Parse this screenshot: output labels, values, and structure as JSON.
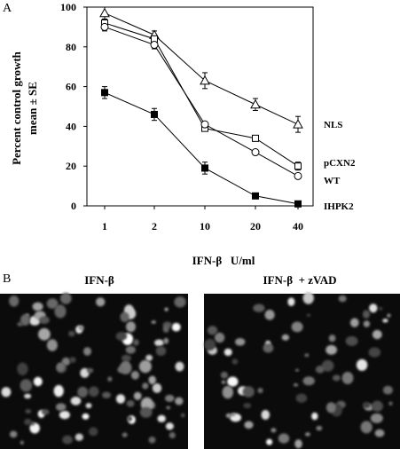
{
  "panels": {
    "a_letter": "A",
    "b_letter": "B"
  },
  "chart_data": {
    "type": "line",
    "categories": [
      "1",
      "2",
      "10",
      "20",
      "40"
    ],
    "xlabel": "IFN-β   U/ml",
    "ylabel": [
      "Percent control growth",
      "mean ± SE"
    ],
    "ylim": [
      0,
      100
    ],
    "yticks": [
      0,
      20,
      40,
      60,
      80,
      100
    ],
    "grid": false,
    "legend": "labels at line ends",
    "series": [
      {
        "name": "NLS",
        "marker": "triangle-open",
        "values": [
          97,
          86,
          63,
          51,
          41
        ],
        "errors": [
          3,
          2,
          4,
          3,
          4
        ]
      },
      {
        "name": "pCXN2",
        "marker": "square-open",
        "values": [
          92,
          84,
          39,
          34,
          20
        ],
        "errors": [
          2,
          2,
          1,
          1,
          2
        ]
      },
      {
        "name": "WT",
        "marker": "circle-open",
        "values": [
          90,
          81,
          41,
          27,
          15
        ],
        "errors": [
          2,
          2,
          1,
          1,
          1
        ]
      },
      {
        "name": "IHPK2",
        "marker": "square-filled",
        "values": [
          57,
          46,
          19,
          5,
          1
        ],
        "errors": [
          3,
          3,
          3,
          1,
          1
        ]
      }
    ]
  },
  "micrographs": {
    "left_label": "IFN-β",
    "right_label": "IFN-β  + zVAD"
  }
}
